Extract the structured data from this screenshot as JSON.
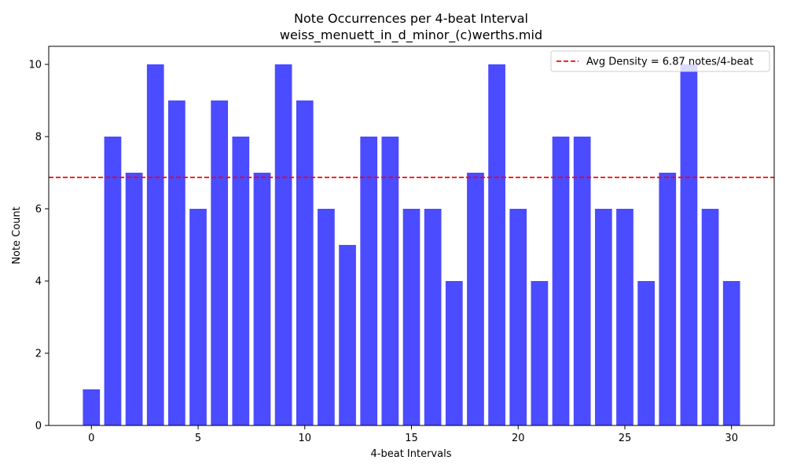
{
  "chart_data": {
    "type": "bar",
    "title": "Note Occurrences per 4-beat Interval",
    "subtitle": "weiss_menuett_in_d_minor_(c)werths.mid",
    "xlabel": "4-beat Intervals",
    "ylabel": "Note Count",
    "x": [
      0,
      1,
      2,
      3,
      4,
      5,
      6,
      7,
      8,
      9,
      10,
      11,
      12,
      13,
      14,
      15,
      16,
      17,
      18,
      19,
      20,
      21,
      22,
      23,
      24,
      25,
      26,
      27,
      28,
      29,
      30
    ],
    "values": [
      1,
      8,
      7,
      10,
      9,
      6,
      9,
      8,
      7,
      10,
      9,
      6,
      5,
      8,
      8,
      6,
      6,
      4,
      7,
      10,
      6,
      4,
      8,
      8,
      6,
      6,
      4,
      7,
      10,
      6,
      4
    ],
    "xlim": [
      -2,
      32
    ],
    "ylim": [
      0,
      10.5
    ],
    "xticks": [
      0,
      5,
      10,
      15,
      20,
      25,
      30
    ],
    "yticks": [
      0,
      2,
      4,
      6,
      8,
      10
    ],
    "bar_color": "#4b4bff",
    "average": {
      "value": 6.87,
      "label": "Avg Density = 6.87 notes/4-beat",
      "color": "#ff0000",
      "style": "dashed"
    },
    "legend_position": "top-right",
    "grid": false
  }
}
